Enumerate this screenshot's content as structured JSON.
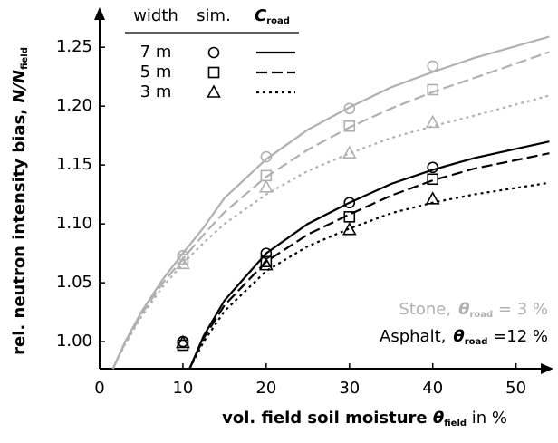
{
  "chart_data": {
    "type": "line",
    "xlabel": {
      "text": "vol. field soil moisture ",
      "symbol": "θ",
      "sub": "field",
      "unit": " in %"
    },
    "ylabel": {
      "text": "rel. neutron intensity bias, ",
      "symbol": "N/N",
      "sub": "field"
    },
    "xlim": [
      0,
      54.5
    ],
    "ylim": [
      0.977,
      1.284
    ],
    "xticks": [
      0,
      10,
      20,
      30,
      40,
      50
    ],
    "yticks": [
      {
        "value": 1,
        "label": "1.00"
      },
      {
        "value": 1.05,
        "label": "1.05"
      },
      {
        "value": 1.1,
        "label": "1.10"
      },
      {
        "value": 1.15,
        "label": "1.15"
      },
      {
        "value": 1.2,
        "label": "1.20"
      },
      {
        "value": 1.25,
        "label": "1.25"
      }
    ],
    "legend": {
      "headers": [
        "width",
        "sim.",
        "C"
      ],
      "header_sub": "road",
      "rows": [
        "7 m",
        "5 m",
        "3 m"
      ]
    },
    "annotations": [
      {
        "text": "Stone,",
        "symbol": "θ",
        "sub": "road",
        "rest": " =  3 %",
        "color": "#b0b0b0"
      },
      {
        "text": "Asphalt,",
        "symbol": "θ",
        "sub": "road",
        "rest": " =12 %",
        "color": "#000000"
      }
    ],
    "series": [
      {
        "kind": "line",
        "style": "solid",
        "color": "#b0b0b0",
        "x": [
          1.6,
          3,
          5,
          7.5,
          10,
          10.8,
          12.5,
          15,
          20,
          25,
          30,
          35,
          40,
          45,
          54
        ],
        "values": [
          0.977,
          0.999,
          1.025,
          1.052,
          1.075,
          1.082,
          1.097,
          1.122,
          1.155,
          1.18,
          1.199,
          1.216,
          1.229,
          1.241,
          1.259
        ]
      },
      {
        "kind": "line",
        "style": "dashed",
        "color": "#b0b0b0",
        "x": [
          1.6,
          3,
          5,
          7.5,
          10,
          10.8,
          12.5,
          15,
          20,
          25,
          30,
          35,
          40,
          45,
          54
        ],
        "values": [
          0.977,
          0.998,
          1.023,
          1.049,
          1.07,
          1.077,
          1.091,
          1.11,
          1.14,
          1.163,
          1.182,
          1.198,
          1.212,
          1.224,
          1.246
        ]
      },
      {
        "kind": "line",
        "style": "dotted",
        "color": "#b0b0b0",
        "x": [
          1.6,
          3,
          5,
          7.5,
          10,
          10.8,
          12.5,
          15,
          20,
          25,
          30,
          35,
          40,
          45,
          54
        ],
        "values": [
          0.977,
          0.997,
          1.021,
          1.046,
          1.066,
          1.072,
          1.084,
          1.1,
          1.125,
          1.145,
          1.16,
          1.173,
          1.183,
          1.192,
          1.209
        ]
      },
      {
        "kind": "line",
        "style": "solid",
        "color": "#000000",
        "x": [
          10.8,
          12.5,
          15,
          20,
          25,
          30,
          35,
          40,
          45,
          54
        ],
        "values": [
          0.977,
          1.005,
          1.035,
          1.075,
          1.1,
          1.118,
          1.134,
          1.146,
          1.156,
          1.17
        ]
      },
      {
        "kind": "line",
        "style": "dashed",
        "color": "#000000",
        "x": [
          10.8,
          12.5,
          15,
          20,
          25,
          30,
          35,
          40,
          45,
          54
        ],
        "values": [
          0.977,
          1.003,
          1.031,
          1.068,
          1.091,
          1.108,
          1.124,
          1.137,
          1.147,
          1.16
        ]
      },
      {
        "kind": "line",
        "style": "dotted",
        "color": "#000000",
        "x": [
          10.8,
          12.5,
          15,
          20,
          25,
          30,
          35,
          40,
          45,
          54
        ],
        "values": [
          0.977,
          1.0,
          1.026,
          1.06,
          1.081,
          1.096,
          1.109,
          1.118,
          1.125,
          1.135
        ]
      },
      {
        "kind": "marker",
        "marker": "circle",
        "color": "#b0b0b0",
        "x": [
          10,
          20,
          30,
          40
        ],
        "values": [
          1.073,
          1.157,
          1.198,
          1.234
        ]
      },
      {
        "kind": "marker",
        "marker": "square",
        "color": "#b0b0b0",
        "x": [
          10,
          20,
          30,
          40
        ],
        "values": [
          1.07,
          1.141,
          1.183,
          1.214
        ]
      },
      {
        "kind": "marker",
        "marker": "triangle",
        "color": "#b0b0b0",
        "x": [
          10,
          20,
          30,
          40
        ],
        "values": [
          1.066,
          1.131,
          1.16,
          1.186
        ]
      },
      {
        "kind": "marker",
        "marker": "circle",
        "color": "#000000",
        "x": [
          10,
          20,
          30,
          40
        ],
        "values": [
          1.0,
          1.075,
          1.118,
          1.148
        ]
      },
      {
        "kind": "marker",
        "marker": "square",
        "color": "#000000",
        "x": [
          10,
          20,
          30,
          40
        ],
        "values": [
          0.997,
          1.068,
          1.106,
          1.138
        ]
      },
      {
        "kind": "marker",
        "marker": "triangle",
        "color": "#000000",
        "x": [
          10,
          20,
          30,
          40
        ],
        "values": [
          0.999,
          1.065,
          1.095,
          1.121
        ]
      }
    ]
  }
}
